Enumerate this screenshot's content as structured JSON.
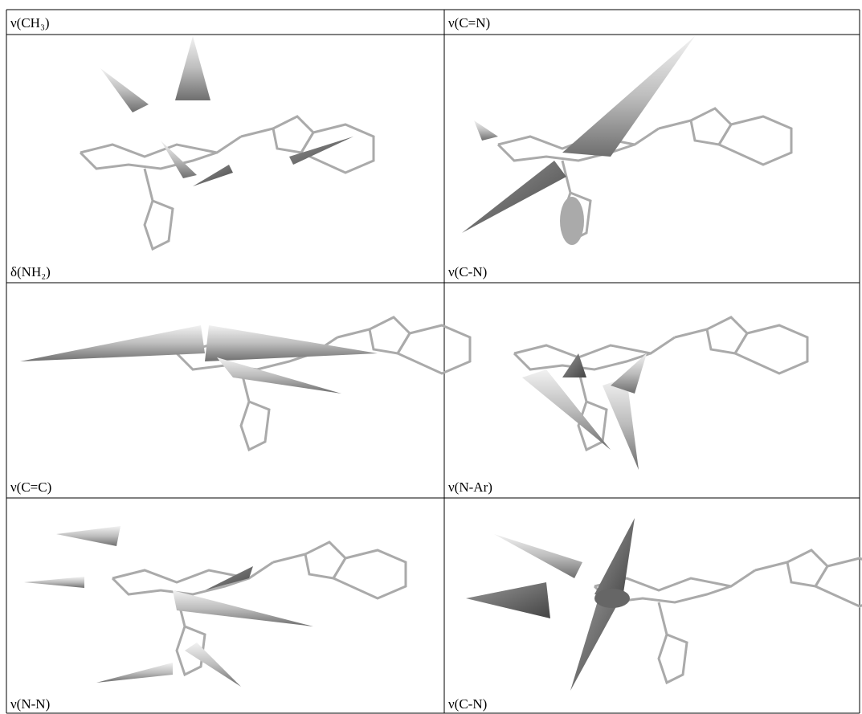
{
  "labels": [
    [
      "ν(CH₃)",
      "ν(C=N)"
    ],
    [
      "δ(NH₂)",
      "ν(C-N)"
    ],
    [
      "ν(C=C)",
      "ν(N-Ar)"
    ],
    [
      "ν(N-N)",
      "ν(C-N)"
    ]
  ]
}
